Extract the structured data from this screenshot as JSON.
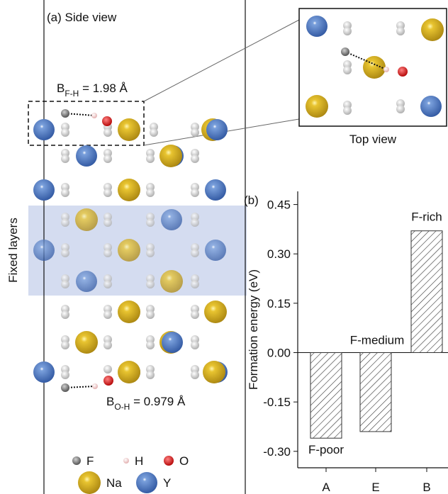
{
  "panel_a": {
    "label": "(a)",
    "title": "Side view",
    "top_view_title": "Top view",
    "band_label": "Fixed layers",
    "bond_top": {
      "symbol": "B",
      "subscript": "F-H",
      "text": " = 1.98 Å"
    },
    "bond_bottom": {
      "symbol": "B",
      "subscript": "O-H",
      "text": " = 0.979 Å"
    },
    "legend": [
      "F",
      "H",
      "O",
      "Na",
      "Y"
    ]
  },
  "chart_data": {
    "type": "bar",
    "panel_label": "(b)",
    "ylabel": "Formation energy (eV)",
    "categories": [
      "A",
      "E",
      "B"
    ],
    "values": [
      -0.26,
      -0.24,
      0.37
    ],
    "annotations": [
      "F-poor",
      "F-medium",
      "F-rich"
    ],
    "ylim": [
      -0.35,
      0.49
    ],
    "yticks": [
      0.45,
      {
        "value": 0.3,
        "label": "0.30"
      },
      0.15,
      {
        "value": 0,
        "label": "0.00"
      },
      -0.15,
      {
        "value": -0.3,
        "label": "-0.30"
      }
    ],
    "hatch": true,
    "color": "#333333"
  }
}
